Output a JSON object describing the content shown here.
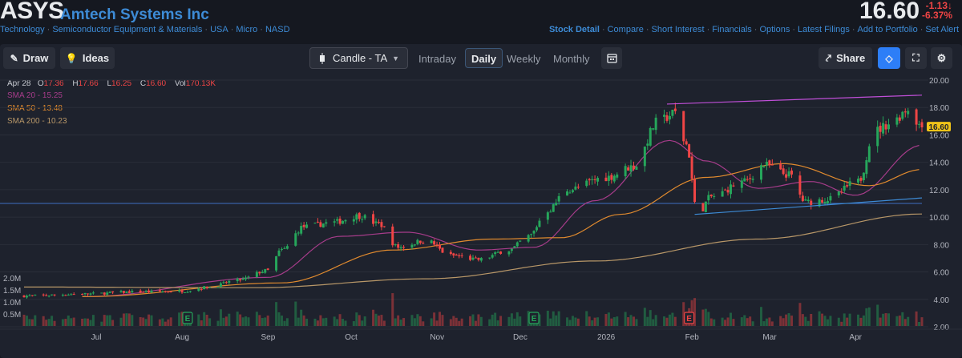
{
  "header": {
    "ticker": "ASYS",
    "company": "Amtech Systems Inc",
    "categories": [
      "Technology",
      "Semiconductor Equipment & Materials",
      "USA",
      "Micro",
      "NASD"
    ],
    "price": "16.60",
    "change": "-1.13",
    "change_pct": "-6.37%",
    "links": [
      "Stock Detail",
      "Compare",
      "Short Interest",
      "Financials",
      "Options",
      "Latest Filings",
      "Add to Portfolio",
      "Set Alert"
    ]
  },
  "toolbar": {
    "draw": "Draw",
    "ideas": "Ideas",
    "chart_type": "Candle - TA",
    "intervals": [
      "Intraday",
      "Daily",
      "Weekly",
      "Monthly"
    ],
    "active_interval": "Daily",
    "share": "Share"
  },
  "colors": {
    "up": "#26a65b",
    "down": "#f04545",
    "sma20": "#a63c8a",
    "sma50": "#e08a2e",
    "sma200": "#b89768",
    "trend_upper": "#c04fd8",
    "trend_lower": "#3d8bd6",
    "h_line": "#3d6fc4",
    "accent": "#2d7ef7"
  },
  "ohlc_legend": {
    "date": "Apr 28",
    "open_label": "O",
    "open": "17.36",
    "high_label": "H",
    "high": "17.66",
    "low_label": "L",
    "low": "16.25",
    "close_label": "C",
    "close": "16.60",
    "vol_label": "Vol",
    "vol": "170.13K"
  },
  "sma_legend": [
    {
      "label": "SMA 20",
      "value": "15.25"
    },
    {
      "label": "SMA 50",
      "value": "13.48"
    },
    {
      "label": "SMA 200",
      "value": "10.23"
    }
  ],
  "chart_data": {
    "type": "candlestick",
    "price_axis": {
      "min": 2,
      "max": 20,
      "ticks": [
        "2.00",
        "4.00",
        "6.00",
        "8.00",
        "10.00",
        "12.00",
        "14.00",
        "16.00",
        "18.00",
        "20.00"
      ]
    },
    "volume_axis_ticks": [
      "2.0M",
      "1.5M",
      "1.0M",
      "0.5M"
    ],
    "volume_range": [
      0,
      2000000
    ],
    "x_ticks": [
      "Jul",
      "Aug",
      "Sep",
      "Oct",
      "Nov",
      "Dec",
      "2026",
      "Feb",
      "Mar",
      "Apr"
    ],
    "x_tick_dates": [
      "2025-07-01",
      "2025-08-01",
      "2025-09-01",
      "2025-10-01",
      "2025-11-01",
      "2025-12-01",
      "2026-01-01",
      "2026-02-01",
      "2026-03-01",
      "2026-04-01"
    ],
    "date_range": [
      "2025-06-09",
      "2026-04-29"
    ],
    "last_price_label": "16.60",
    "close_anchors": [
      [
        "2025-06-09",
        4.25
      ],
      [
        "2025-07-01",
        4.4
      ],
      [
        "2025-07-20",
        4.55
      ],
      [
        "2025-08-05",
        4.6
      ],
      [
        "2025-08-15",
        4.9
      ],
      [
        "2025-08-25",
        5.4
      ],
      [
        "2025-09-05",
        6.1
      ],
      [
        "2025-09-10",
        7.6
      ],
      [
        "2025-09-18",
        9.3
      ],
      [
        "2025-09-28",
        9.6
      ],
      [
        "2025-10-08",
        10.1
      ],
      [
        "2025-10-15",
        9.5
      ],
      [
        "2025-10-22",
        7.8
      ],
      [
        "2025-11-01",
        8.3
      ],
      [
        "2025-11-10",
        7.2
      ],
      [
        "2025-11-20",
        6.9
      ],
      [
        "2025-12-01",
        7.6
      ],
      [
        "2025-12-08",
        8.6
      ],
      [
        "2025-12-15",
        10.5
      ],
      [
        "2025-12-22",
        12.0
      ],
      [
        "2026-01-05",
        12.9
      ],
      [
        "2026-01-15",
        13.7
      ],
      [
        "2026-01-24",
        17.0
      ],
      [
        "2026-01-30",
        17.6
      ],
      [
        "2026-02-03",
        15.3
      ],
      [
        "2026-02-07",
        10.2
      ],
      [
        "2026-02-12",
        11.5
      ],
      [
        "2026-02-24",
        12.6
      ],
      [
        "2026-03-03",
        13.8
      ],
      [
        "2026-03-12",
        13.1
      ],
      [
        "2026-03-18",
        11.1
      ],
      [
        "2026-03-26",
        11.3
      ],
      [
        "2026-04-06",
        12.6
      ],
      [
        "2026-04-12",
        16.3
      ],
      [
        "2026-04-18",
        16.9
      ],
      [
        "2026-04-24",
        17.9
      ],
      [
        "2026-04-29",
        16.6
      ]
    ],
    "sma20_anchors": [
      [
        "2025-07-01",
        4.2
      ],
      [
        "2025-09-05",
        5.6
      ],
      [
        "2025-10-01",
        8.6
      ],
      [
        "2025-10-25",
        8.9
      ],
      [
        "2025-11-20",
        7.6
      ],
      [
        "2025-12-10",
        7.8
      ],
      [
        "2026-01-01",
        11.2
      ],
      [
        "2026-01-28",
        15.6
      ],
      [
        "2026-02-10",
        14.1
      ],
      [
        "2026-03-01",
        12.1
      ],
      [
        "2026-03-20",
        12.6
      ],
      [
        "2026-04-05",
        11.6
      ],
      [
        "2026-04-29",
        15.25
      ]
    ],
    "sma50_anchors": [
      [
        "2025-07-01",
        4.2
      ],
      [
        "2025-09-10",
        5.2
      ],
      [
        "2025-10-20",
        7.6
      ],
      [
        "2025-11-25",
        8.4
      ],
      [
        "2025-12-20",
        8.5
      ],
      [
        "2026-01-10",
        10.2
      ],
      [
        "2026-02-10",
        12.9
      ],
      [
        "2026-03-10",
        13.9
      ],
      [
        "2026-04-10",
        12.3
      ],
      [
        "2026-04-29",
        13.48
      ]
    ],
    "sma200_anchors": [
      [
        "2025-06-09",
        4.9
      ],
      [
        "2025-09-01",
        4.85
      ],
      [
        "2025-11-01",
        5.5
      ],
      [
        "2026-01-01",
        6.8
      ],
      [
        "2026-03-01",
        8.4
      ],
      [
        "2026-04-29",
        10.23
      ]
    ],
    "trendlines": [
      {
        "name": "upper",
        "from": [
          "2026-01-27",
          18.25
        ],
        "to": [
          "2026-04-29",
          18.9
        ]
      },
      {
        "name": "lower",
        "from": [
          "2026-02-06",
          10.2
        ],
        "to": [
          "2026-04-29",
          11.4
        ]
      },
      {
        "name": "horizontal",
        "from": [
          "2025-06-09",
          11.0
        ],
        "to": [
          "2026-04-29",
          11.0
        ]
      }
    ],
    "earnings_markers": [
      {
        "date": "2025-08-07",
        "label": "E",
        "color": "up"
      },
      {
        "date": "2025-12-10",
        "label": "E",
        "color": "up"
      },
      {
        "date": "2026-02-04",
        "label": "E",
        "color": "down"
      }
    ]
  }
}
